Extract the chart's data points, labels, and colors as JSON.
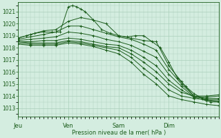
{
  "background_color": "#d4ede0",
  "grid_color": "#aacfba",
  "line_color": "#1a5c1a",
  "marker_color": "#1a5c1a",
  "ylabel_ticks": [
    1013,
    1014,
    1015,
    1016,
    1017,
    1018,
    1019,
    1020,
    1021
  ],
  "xlim": [
    0,
    96
  ],
  "ylim": [
    1012.3,
    1021.8
  ],
  "xlabel": "Pression niveau de la mer( hPa )",
  "xtick_labels": [
    "Jeu",
    "Ven",
    "Sam",
    "Dim"
  ],
  "xtick_positions": [
    0,
    24,
    48,
    72
  ],
  "lines": [
    {
      "x": [
        0,
        4,
        8,
        12,
        16,
        20,
        24,
        26,
        28,
        30,
        32,
        36,
        40,
        44,
        48,
        52,
        56,
        60,
        64,
        68,
        72,
        76,
        80,
        84,
        88,
        92,
        96
      ],
      "y": [
        1018.8,
        1019.0,
        1019.2,
        1019.3,
        1019.3,
        1019.3,
        1021.4,
        1021.5,
        1021.4,
        1021.2,
        1021.0,
        1020.3,
        1019.5,
        1019.2,
        1019.0,
        1018.9,
        1019.0,
        1019.0,
        1018.5,
        1018.0,
        1016.8,
        1015.5,
        1014.8,
        1014.2,
        1013.8,
        1013.5,
        1013.5
      ]
    },
    {
      "x": [
        0,
        6,
        12,
        18,
        24,
        30,
        36,
        42,
        48,
        54,
        60,
        66,
        72,
        78,
        84,
        90,
        96
      ],
      "y": [
        1018.8,
        1019.1,
        1019.4,
        1019.5,
        1020.2,
        1020.5,
        1020.3,
        1020.0,
        1019.0,
        1018.8,
        1018.6,
        1018.5,
        1016.5,
        1015.2,
        1014.0,
        1013.8,
        1013.8
      ]
    },
    {
      "x": [
        0,
        6,
        12,
        18,
        24,
        30,
        36,
        42,
        48,
        54,
        60,
        66,
        72,
        78,
        84,
        90,
        96
      ],
      "y": [
        1018.7,
        1018.9,
        1019.1,
        1019.3,
        1019.8,
        1019.8,
        1019.5,
        1019.2,
        1018.9,
        1018.7,
        1018.3,
        1017.8,
        1016.2,
        1015.0,
        1014.0,
        1013.7,
        1013.7
      ]
    },
    {
      "x": [
        0,
        6,
        12,
        18,
        24,
        30,
        36,
        42,
        48,
        54,
        60,
        66,
        72,
        78,
        84,
        90,
        96
      ],
      "y": [
        1018.6,
        1018.7,
        1018.8,
        1018.9,
        1019.3,
        1019.2,
        1019.0,
        1018.7,
        1018.5,
        1018.2,
        1017.7,
        1017.2,
        1015.8,
        1014.8,
        1013.9,
        1013.6,
        1013.6
      ]
    },
    {
      "x": [
        0,
        6,
        12,
        18,
        24,
        30,
        36,
        42,
        48,
        54,
        60,
        66,
        72,
        78,
        84,
        90,
        96
      ],
      "y": [
        1018.5,
        1018.5,
        1018.6,
        1018.6,
        1018.8,
        1018.7,
        1018.5,
        1018.3,
        1018.2,
        1017.8,
        1017.2,
        1016.5,
        1015.3,
        1014.5,
        1013.9,
        1013.9,
        1014.0
      ]
    },
    {
      "x": [
        0,
        6,
        12,
        18,
        24,
        30,
        36,
        42,
        48,
        54,
        60,
        66,
        72,
        78,
        84,
        90,
        96
      ],
      "y": [
        1018.5,
        1018.4,
        1018.4,
        1018.4,
        1018.6,
        1018.5,
        1018.3,
        1018.1,
        1018.0,
        1017.5,
        1016.8,
        1016.0,
        1015.0,
        1014.3,
        1014.0,
        1014.0,
        1014.1
      ]
    },
    {
      "x": [
        0,
        6,
        12,
        18,
        24,
        30,
        36,
        42,
        48,
        54,
        60,
        66,
        72,
        78,
        84,
        90,
        96
      ],
      "y": [
        1018.4,
        1018.3,
        1018.3,
        1018.3,
        1018.5,
        1018.4,
        1018.2,
        1018.0,
        1017.8,
        1017.2,
        1016.3,
        1015.5,
        1014.5,
        1014.0,
        1013.8,
        1013.7,
        1013.5
      ]
    },
    {
      "x": [
        0,
        6,
        12,
        18,
        24,
        30,
        36,
        42,
        48,
        54,
        60,
        66,
        72,
        78,
        84,
        90,
        96
      ],
      "y": [
        1018.3,
        1018.2,
        1018.2,
        1018.2,
        1018.4,
        1018.3,
        1018.1,
        1017.8,
        1017.5,
        1016.8,
        1015.8,
        1015.0,
        1014.0,
        1013.7,
        1013.5,
        1013.3,
        1013.2
      ]
    }
  ]
}
